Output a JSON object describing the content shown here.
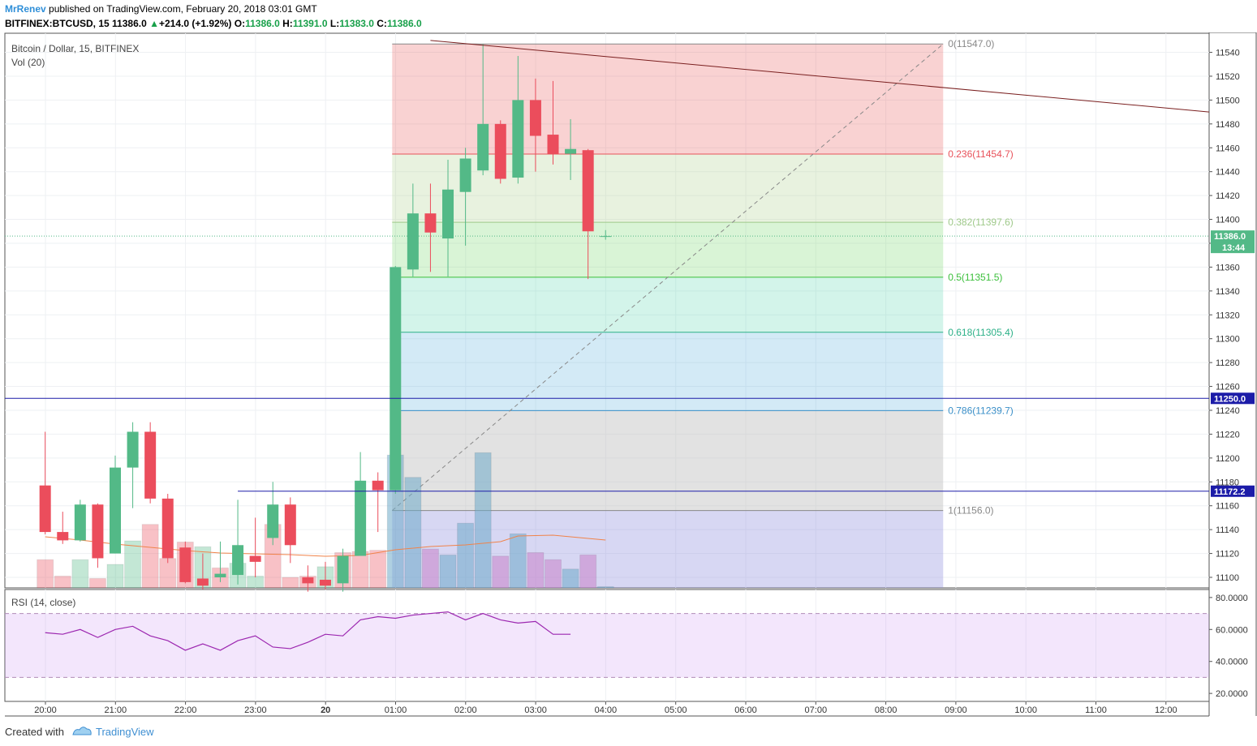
{
  "header": {
    "author": "MrRenev",
    "published": "published on TradingView.com, February 20, 2018 03:01 GMT",
    "symbol": "BITFINEX:BTCUSD, 15",
    "last": "11386.0",
    "change": "+214.0 (+1.92%)",
    "open_label": "O:",
    "open": "11386.0",
    "high_label": "H:",
    "high": "11391.0",
    "low_label": "L:",
    "low": "11383.0",
    "close_label": "C:",
    "close": "11386.0"
  },
  "footer": {
    "created_with": "Created with",
    "brand": "TradingView"
  },
  "colors": {
    "up": "#53b987",
    "down": "#eb4d5c",
    "fib_line_red": "#e8515a",
    "hline_blue": "#1c1ca8",
    "trend": "#7a1f1f",
    "rsi_line": "#9c27b0"
  },
  "chart_data": {
    "type": "candlestick",
    "title": "Bitcoin / Dollar, 15, BITFINEX",
    "volume_label": "Vol (20)",
    "rsi_label": "RSI (14, close)",
    "ylim": [
      11090,
      11560
    ],
    "yticks": [
      11100,
      11120,
      11140,
      11160,
      11180,
      11200,
      11220,
      11240,
      11260,
      11280,
      11300,
      11320,
      11340,
      11360,
      11380,
      11400,
      11420,
      11440,
      11460,
      11480,
      11500,
      11520,
      11540
    ],
    "xticks": [
      "20:00",
      "21:00",
      "22:00",
      "23:00",
      "20",
      "01:00",
      "02:00",
      "03:00",
      "04:00",
      "05:00",
      "06:00",
      "07:00",
      "08:00",
      "09:00",
      "10:00",
      "11:00",
      "12:00"
    ],
    "candles": [
      {
        "t": -4.0,
        "o": 11177,
        "h": 11222,
        "l": 11136,
        "c": 11138
      },
      {
        "t": -3.0,
        "o": 11138,
        "h": 11155,
        "l": 11128,
        "c": 11131
      },
      {
        "t": -2.0,
        "o": 11131,
        "h": 11165,
        "l": 11130,
        "c": 11161
      },
      {
        "t": -1.0,
        "o": 11161,
        "h": 11162,
        "l": 11108,
        "c": 11116
      },
      {
        "t": 0.0,
        "o": 11120,
        "h": 11202,
        "l": 11120,
        "c": 11192
      },
      {
        "t": 1.0,
        "o": 11192,
        "h": 11230,
        "l": 11158,
        "c": 11222
      },
      {
        "t": 2.0,
        "o": 11222,
        "h": 11230,
        "l": 11162,
        "c": 11166
      },
      {
        "t": 3.0,
        "o": 11166,
        "h": 11170,
        "l": 11112,
        "c": 11116
      },
      {
        "t": 4.0,
        "o": 11125,
        "h": 11130,
        "l": 11095,
        "c": 11096
      },
      {
        "t": 5.0,
        "o": 11099,
        "h": 11120,
        "l": 11090,
        "c": 11093
      },
      {
        "t": 6.0,
        "o": 11100,
        "h": 11130,
        "l": 11096,
        "c": 11103
      },
      {
        "t": 7.0,
        "o": 11102,
        "h": 11165,
        "l": 11094,
        "c": 11127
      },
      {
        "t": 8.0,
        "o": 11118,
        "h": 11150,
        "l": 11100,
        "c": 11113
      },
      {
        "t": 9.0,
        "o": 11133,
        "h": 11180,
        "l": 11127,
        "c": 11161
      },
      {
        "t": 10.0,
        "o": 11161,
        "h": 11167,
        "l": 11112,
        "c": 11127
      },
      {
        "t": 11.0,
        "o": 11100,
        "h": 11110,
        "l": 11088,
        "c": 11095
      },
      {
        "t": 12.0,
        "o": 11098,
        "h": 11113,
        "l": 11090,
        "c": 11093
      },
      {
        "t": 13.0,
        "o": 11095,
        "h": 11124,
        "l": 11088,
        "c": 11118
      },
      {
        "t": 14.0,
        "o": 11118,
        "h": 11205,
        "l": 11118,
        "c": 11181
      },
      {
        "t": 15.0,
        "o": 11181,
        "h": 11188,
        "l": 11138,
        "c": 11173
      },
      {
        "t": 16.0,
        "o": 11173,
        "h": 11361,
        "l": 11170,
        "c": 11360
      },
      {
        "t": 17.0,
        "o": 11358,
        "h": 11430,
        "l": 11352,
        "c": 11405
      },
      {
        "t": 18.0,
        "o": 11405,
        "h": 11430,
        "l": 11356,
        "c": 11389
      },
      {
        "t": 19.0,
        "o": 11384,
        "h": 11450,
        "l": 11352,
        "c": 11425
      },
      {
        "t": 20.0,
        "o": 11423,
        "h": 11460,
        "l": 11378,
        "c": 11451
      },
      {
        "t": 21.0,
        "o": 11441,
        "h": 11547,
        "l": 11437,
        "c": 11480
      },
      {
        "t": 22.0,
        "o": 11480,
        "h": 11483,
        "l": 11430,
        "c": 11434
      },
      {
        "t": 23.0,
        "o": 11435,
        "h": 11537,
        "l": 11430,
        "c": 11500
      },
      {
        "t": 24.0,
        "o": 11500,
        "h": 11518,
        "l": 11440,
        "c": 11470
      },
      {
        "t": 25.0,
        "o": 11471,
        "h": 11516,
        "l": 11446,
        "c": 11455
      },
      {
        "t": 26.0,
        "o": 11455,
        "h": 11484,
        "l": 11433,
        "c": 11459
      },
      {
        "t": 27.0,
        "o": 11458,
        "h": 11459,
        "l": 11350,
        "c": 11390
      },
      {
        "t": 28.0,
        "o": 11386,
        "h": 11391,
        "l": 11383,
        "c": 11386
      }
    ],
    "volume": [
      {
        "t": -4.0,
        "v": 24,
        "up": false
      },
      {
        "t": -3.0,
        "v": 10,
        "up": false
      },
      {
        "t": -2.0,
        "v": 24,
        "up": true
      },
      {
        "t": -1.0,
        "v": 8,
        "up": false
      },
      {
        "t": 0.0,
        "v": 20,
        "up": true
      },
      {
        "t": 1.0,
        "v": 40,
        "up": true
      },
      {
        "t": 2.0,
        "v": 54,
        "up": false
      },
      {
        "t": 3.0,
        "v": 25,
        "up": false
      },
      {
        "t": 4.0,
        "v": 39,
        "up": false
      },
      {
        "t": 5.0,
        "v": 35,
        "up": true
      },
      {
        "t": 6.0,
        "v": 17,
        "up": false
      },
      {
        "t": 7.0,
        "v": 21,
        "up": true
      },
      {
        "t": 8.0,
        "v": 10,
        "up": true
      },
      {
        "t": 9.0,
        "v": 54,
        "up": false
      },
      {
        "t": 10.0,
        "v": 9,
        "up": false
      },
      {
        "t": 11.0,
        "v": 10,
        "up": false
      },
      {
        "t": 12.0,
        "v": 18,
        "up": true
      },
      {
        "t": 13.0,
        "v": 30,
        "up": false
      },
      {
        "t": 14.0,
        "v": 31,
        "up": false
      },
      {
        "t": 15.0,
        "v": 32,
        "up": false
      },
      {
        "t": 16.0,
        "v": 113,
        "up": true
      },
      {
        "t": 17.0,
        "v": 94,
        "up": true
      },
      {
        "t": 18.0,
        "v": 33,
        "up": false
      },
      {
        "t": 19.0,
        "v": 28,
        "up": true
      },
      {
        "t": 20.0,
        "v": 55,
        "up": true
      },
      {
        "t": 21.0,
        "v": 115,
        "up": true
      },
      {
        "t": 22.0,
        "v": 27,
        "up": false
      },
      {
        "t": 23.0,
        "v": 46,
        "up": true
      },
      {
        "t": 24.0,
        "v": 30,
        "up": false
      },
      {
        "t": 25.0,
        "v": 24,
        "up": false
      },
      {
        "t": 26.0,
        "v": 16,
        "up": true
      },
      {
        "t": 27.0,
        "v": 28,
        "up": false
      },
      {
        "t": 28.0,
        "v": 1,
        "up": true
      }
    ],
    "fib": {
      "start_t": 16.0,
      "end_t": 47.0,
      "levels": [
        {
          "label": "0(11547.0)",
          "price": 11547.0,
          "color": "#888888"
        },
        {
          "label": "0.236(11454.7)",
          "price": 11454.7,
          "color": "#e8515a"
        },
        {
          "label": "0.382(11397.6)",
          "price": 11397.6,
          "color": "#9fc98a"
        },
        {
          "label": "0.5(11351.5)",
          "price": 11351.5,
          "color": "#3bbf3b"
        },
        {
          "label": "0.618(11305.4)",
          "price": 11305.4,
          "color": "#2cb088"
        },
        {
          "label": "0.786(11239.7)",
          "price": 11239.7,
          "color": "#3a8fc8"
        },
        {
          "label": "1(11156.0)",
          "price": 11156.0,
          "color": "#888888"
        }
      ]
    },
    "hlines": [
      {
        "price": 11250.0,
        "label": "11250.0"
      },
      {
        "price": 11172.2,
        "label": "11172.2"
      }
    ],
    "last_price": {
      "price": 11386.0,
      "label": "11386.0",
      "countdown": "13:44"
    },
    "trendline": {
      "t1": 18.0,
      "p1": 11550,
      "t2": 68.0,
      "p2": 11490
    },
    "rsi": {
      "ylim": [
        15,
        85
      ],
      "yticks": [
        "20.0000",
        "40.0000",
        "60.0000",
        "80.0000"
      ],
      "upper": 70,
      "lower": 30,
      "points": [
        [
          -4,
          58
        ],
        [
          -3,
          57
        ],
        [
          -2,
          60
        ],
        [
          -1,
          55
        ],
        [
          0,
          60
        ],
        [
          1,
          62
        ],
        [
          2,
          56
        ],
        [
          3,
          53
        ],
        [
          4,
          47
        ],
        [
          5,
          51
        ],
        [
          6,
          47
        ],
        [
          7,
          53
        ],
        [
          8,
          56
        ],
        [
          9,
          49
        ],
        [
          10,
          48
        ],
        [
          11,
          52
        ],
        [
          12,
          57
        ],
        [
          13,
          56
        ],
        [
          14,
          66
        ],
        [
          15,
          68
        ],
        [
          16,
          67
        ],
        [
          17,
          69
        ],
        [
          18,
          70
        ],
        [
          19,
          71
        ],
        [
          20,
          66
        ],
        [
          21,
          70
        ],
        [
          22,
          66
        ],
        [
          23,
          64
        ],
        [
          24,
          65
        ],
        [
          25,
          57
        ],
        [
          26,
          57
        ]
      ]
    }
  }
}
